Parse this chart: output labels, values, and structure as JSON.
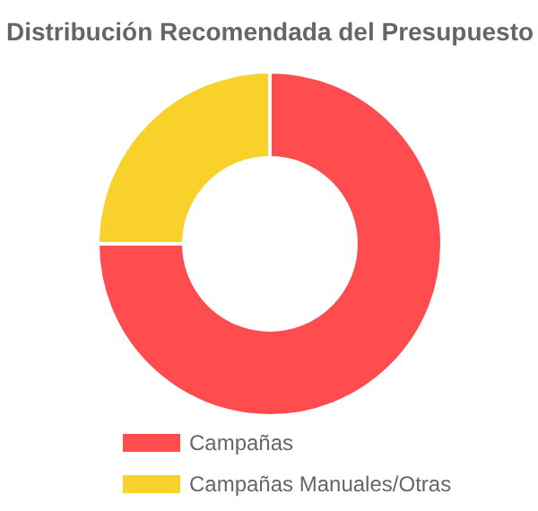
{
  "chart_data": {
    "type": "donut",
    "title": "Distribución Recomendada del Presupuesto",
    "categories": [
      "Campañas",
      "Campañas Manuales/Otras"
    ],
    "values": [
      75,
      25
    ],
    "colors": [
      "#ff4d4f",
      "#f8d22b"
    ],
    "legend": "bottom"
  }
}
